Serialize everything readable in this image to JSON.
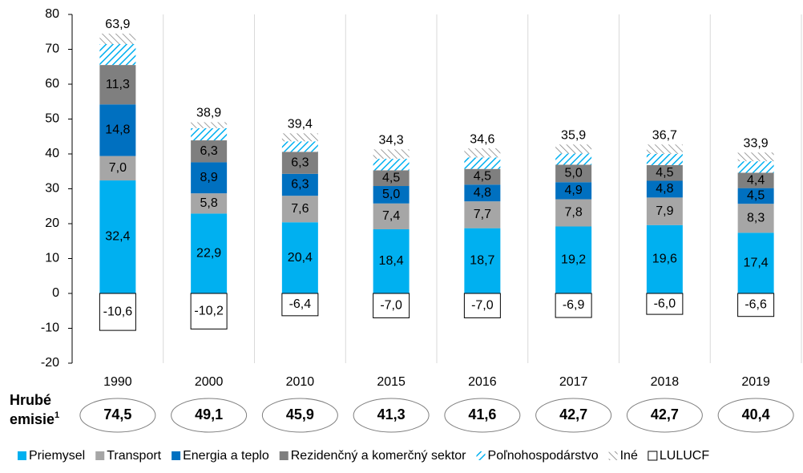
{
  "chart_data": {
    "type": "bar",
    "stacked": true,
    "categories": [
      "1990",
      "2000",
      "2010",
      "2015",
      "2016",
      "2017",
      "2018",
      "2019"
    ],
    "ylim": [
      -20,
      80
    ],
    "yticks": [
      -20,
      -10,
      0,
      10,
      20,
      30,
      40,
      50,
      60,
      70,
      80
    ],
    "series": [
      {
        "name": "Priemysel",
        "color": "#00b0f0",
        "label_color": "#ffffff",
        "values": [
          32.4,
          22.9,
          20.4,
          18.4,
          18.7,
          19.2,
          19.6,
          17.4
        ],
        "value_labels": [
          "32,4",
          "22,9",
          "20,4",
          "18,4",
          "18,7",
          "19,2",
          "19,6",
          "17,4"
        ]
      },
      {
        "name": "Transport",
        "color": "#a6a6a6",
        "label_color": "#000000",
        "values": [
          7.0,
          5.8,
          7.6,
          7.4,
          7.7,
          7.8,
          7.9,
          8.3
        ],
        "value_labels": [
          "7,0",
          "5,8",
          "7,6",
          "7,4",
          "7,7",
          "7,8",
          "7,9",
          "8,3"
        ]
      },
      {
        "name": "Energia a teplo",
        "color": "#0070c0",
        "label_color": "#ffffff",
        "values": [
          14.8,
          8.9,
          6.3,
          5.0,
          4.8,
          4.9,
          4.8,
          4.5
        ],
        "value_labels": [
          "14,8",
          "8,9",
          "6,3",
          "5,0",
          "4,8",
          "4,9",
          "4,8",
          "4,5"
        ]
      },
      {
        "name": "Rezidenčný a komerčný sektor",
        "color": "#7f7f7f",
        "label_color": "#ffffff",
        "values": [
          11.3,
          6.3,
          6.3,
          4.5,
          4.5,
          5.0,
          4.5,
          4.4
        ],
        "value_labels": [
          "11,3",
          "6,3",
          "6,3",
          "4,5",
          "4,5",
          "5,0",
          "4,5",
          "4,4"
        ]
      },
      {
        "name": "Poľnohospodárstvo",
        "color": "#00b0f0",
        "pattern": "stripes",
        "values": [
          6.0,
          3.5,
          3.0,
          3.3,
          3.3,
          3.2,
          3.2,
          3.3
        ]
      },
      {
        "name": "Iné",
        "color": "#7f7f7f",
        "pattern": "hatch",
        "values": [
          3.0,
          1.7,
          2.3,
          2.7,
          2.6,
          2.6,
          2.7,
          2.5
        ]
      },
      {
        "name": "LULUCF",
        "color": "#ffffff",
        "border": "#000000",
        "label_color": "#000000",
        "values": [
          -10.6,
          -10.2,
          -6.4,
          -7.0,
          -7.0,
          -6.9,
          -6.0,
          -6.6
        ],
        "value_labels": [
          "-10,6",
          "-10,2",
          "-6,4",
          "-7,0",
          "-7,0",
          "-6,9",
          "-6,0",
          "-6,6"
        ]
      }
    ],
    "totals": {
      "values": [
        63.9,
        38.9,
        39.4,
        34.3,
        34.6,
        35.9,
        36.7,
        33.9
      ],
      "value_labels": [
        "63,9",
        "38,9",
        "39,4",
        "34,3",
        "34,6",
        "35,9",
        "36,7",
        "33,9"
      ]
    },
    "gross": {
      "label": [
        "Hrubé",
        "emisie"
      ],
      "label_note": "1",
      "values": [
        74.5,
        49.1,
        45.9,
        41.3,
        41.6,
        42.7,
        42.7,
        40.4
      ],
      "value_labels": [
        "74,5",
        "49,1",
        "45,9",
        "41,3",
        "41,6",
        "42,7",
        "42,7",
        "40,4"
      ]
    }
  }
}
